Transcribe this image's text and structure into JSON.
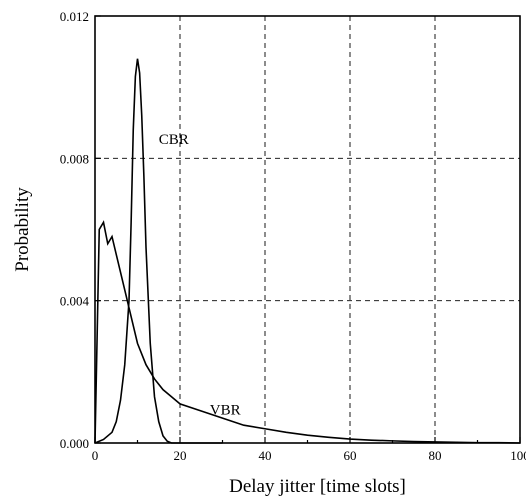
{
  "chart_data": {
    "type": "line",
    "xlabel": "Delay jitter [time slots]",
    "ylabel": "Probability",
    "xlim": [
      0,
      100
    ],
    "ylim": [
      0,
      0.012
    ],
    "xticks": [
      "0",
      "20",
      "40",
      "60",
      "80",
      "100"
    ],
    "yticks": [
      "0.000",
      "0.004",
      "0.008",
      "0.012"
    ],
    "grid": true,
    "series": [
      {
        "name": "CBR",
        "x": [
          0,
          2,
          4,
          5,
          6,
          7,
          8,
          8.5,
          9,
          9.5,
          10,
          10.5,
          11,
          11.5,
          12,
          13,
          14,
          15,
          16,
          17,
          18,
          19,
          20,
          25,
          30
        ],
        "y": [
          0.0,
          0.0001,
          0.0003,
          0.0006,
          0.0012,
          0.0022,
          0.004,
          0.0062,
          0.0088,
          0.0103,
          0.0108,
          0.0104,
          0.0092,
          0.0075,
          0.0055,
          0.0028,
          0.0013,
          0.0006,
          0.0002,
          5e-05,
          0.0,
          0.0,
          0.0,
          0.0,
          0.0
        ],
        "label_x": 15,
        "label_y": 0.0084
      },
      {
        "name": "VBR",
        "x": [
          0,
          0.5,
          1,
          2,
          3,
          4,
          5,
          6,
          7,
          8,
          9,
          10,
          12,
          14,
          16,
          18,
          20,
          25,
          30,
          35,
          40,
          45,
          50,
          55,
          60,
          65,
          70,
          75,
          80,
          85,
          90,
          95,
          100
        ],
        "y": [
          0.0,
          0.003,
          0.006,
          0.0062,
          0.0056,
          0.0058,
          0.0053,
          0.0048,
          0.0043,
          0.0038,
          0.0033,
          0.0028,
          0.0022,
          0.0018,
          0.0015,
          0.0013,
          0.0011,
          0.0009,
          0.0007,
          0.0005,
          0.0004,
          0.0003,
          0.00022,
          0.00016,
          0.00011,
          8e-05,
          6e-05,
          4e-05,
          3e-05,
          2e-05,
          1e-05,
          1e-05,
          0.0
        ],
        "label_x": 27,
        "label_y": 0.0008
      }
    ]
  }
}
